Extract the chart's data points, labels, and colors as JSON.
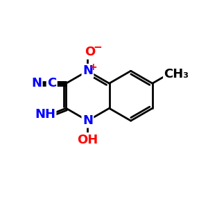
{
  "bg_color": "#ffffff",
  "bond_color": "#000000",
  "blue_color": "#0000ff",
  "red_color": "#ff0000",
  "line_width": 2.0,
  "font_size_atoms": 13,
  "font_size_small": 10,
  "xlim": [
    0,
    10
  ],
  "ylim": [
    0,
    10
  ]
}
